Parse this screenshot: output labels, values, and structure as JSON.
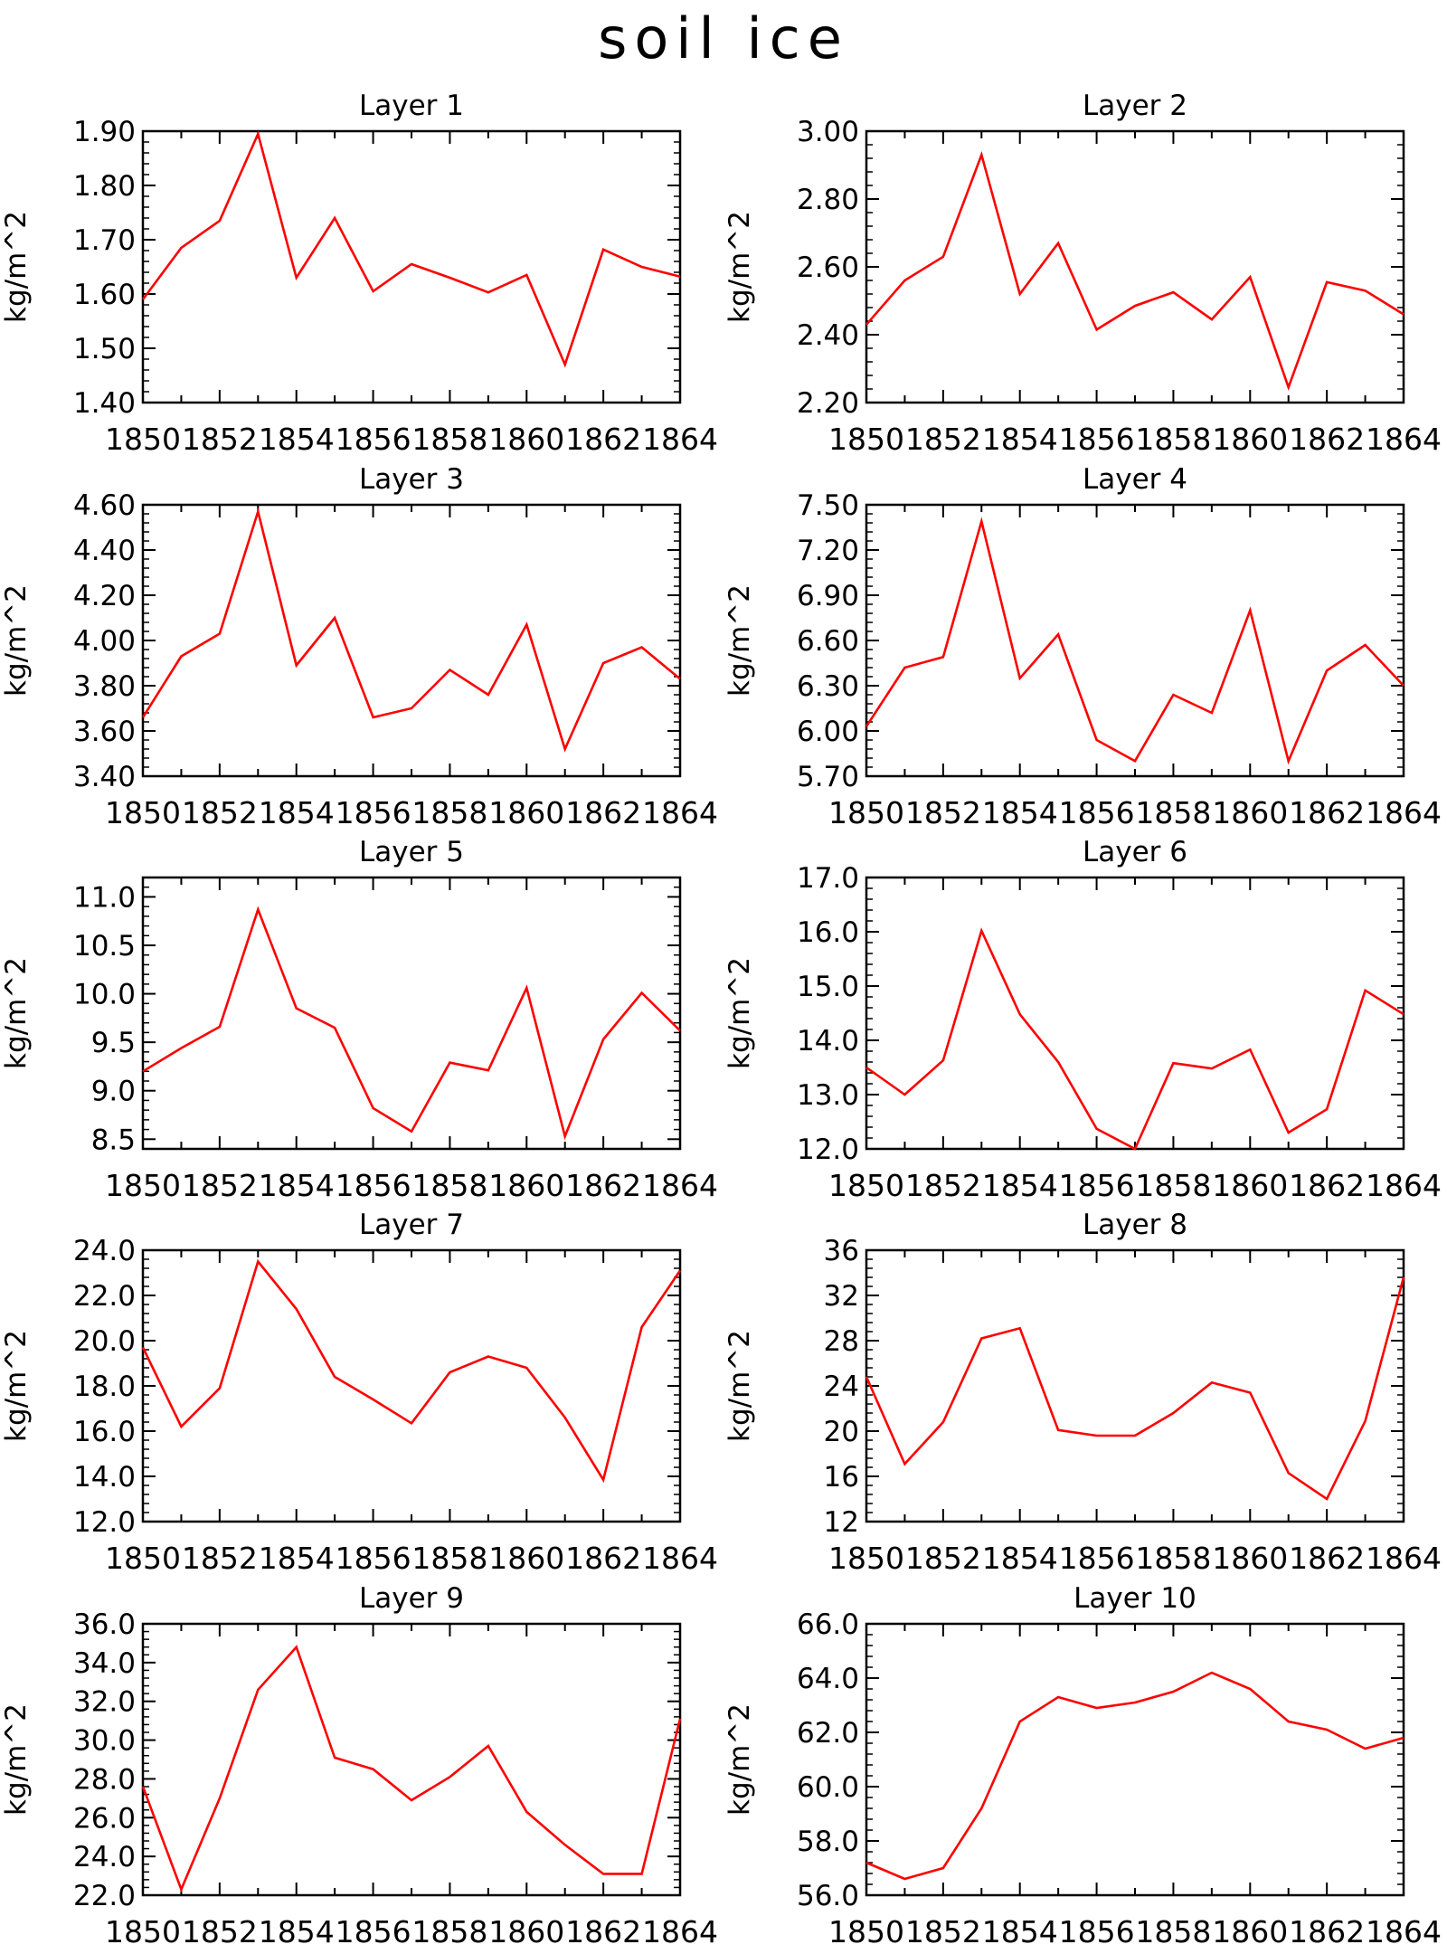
{
  "title": "soil ice",
  "chart_data": [
    {
      "type": "line",
      "title": "Layer 1",
      "ylabel": "kg/m^2",
      "x": [
        1850,
        1851,
        1852,
        1853,
        1854,
        1855,
        1856,
        1857,
        1858,
        1859,
        1860,
        1861,
        1862,
        1863,
        1864
      ],
      "series": [
        {
          "values": [
            1.59,
            1.685,
            1.735,
            1.895,
            1.63,
            1.74,
            1.605,
            1.655,
            1.63,
            1.603,
            1.635,
            1.47,
            1.682,
            1.65,
            1.632
          ]
        }
      ],
      "ylim": [
        1.4,
        1.9
      ],
      "yticks": [
        1.4,
        1.5,
        1.6,
        1.7,
        1.8,
        1.9
      ],
      "ytick_labels": [
        "1.40",
        "1.50",
        "1.60",
        "1.70",
        "1.80",
        "1.90"
      ],
      "xlim": [
        1850,
        1864
      ],
      "xtick_labels": [
        "1850",
        "1852",
        "1854",
        "1856",
        "1858",
        "1860",
        "1862",
        "1864"
      ],
      "color": "#ff0000"
    },
    {
      "type": "line",
      "title": "Layer 2",
      "ylabel": "kg/m^2",
      "x": [
        1850,
        1851,
        1852,
        1853,
        1854,
        1855,
        1856,
        1857,
        1858,
        1859,
        1860,
        1861,
        1862,
        1863,
        1864
      ],
      "series": [
        {
          "values": [
            2.43,
            2.56,
            2.63,
            2.93,
            2.52,
            2.67,
            2.415,
            2.485,
            2.525,
            2.445,
            2.57,
            2.245,
            2.555,
            2.53,
            2.46
          ]
        }
      ],
      "ylim": [
        2.2,
        3.0
      ],
      "yticks": [
        2.2,
        2.4,
        2.6,
        2.8,
        3.0
      ],
      "ytick_labels": [
        "2.20",
        "2.40",
        "2.60",
        "2.80",
        "3.00"
      ],
      "xlim": [
        1850,
        1864
      ],
      "xtick_labels": [
        "1850",
        "1852",
        "1854",
        "1856",
        "1858",
        "1860",
        "1862",
        "1864"
      ],
      "color": "#ff0000"
    },
    {
      "type": "line",
      "title": "Layer 3",
      "ylabel": "kg/m^2",
      "x": [
        1850,
        1851,
        1852,
        1853,
        1854,
        1855,
        1856,
        1857,
        1858,
        1859,
        1860,
        1861,
        1862,
        1863,
        1864
      ],
      "series": [
        {
          "values": [
            3.66,
            3.93,
            4.03,
            4.57,
            3.89,
            4.1,
            3.66,
            3.7,
            3.87,
            3.76,
            4.07,
            3.52,
            3.9,
            3.97,
            3.83
          ]
        }
      ],
      "ylim": [
        3.4,
        4.6
      ],
      "yticks": [
        3.4,
        3.6,
        3.8,
        4.0,
        4.2,
        4.4,
        4.6
      ],
      "ytick_labels": [
        "3.40",
        "3.60",
        "3.80",
        "4.00",
        "4.20",
        "4.40",
        "4.60"
      ],
      "xlim": [
        1850,
        1864
      ],
      "xtick_labels": [
        "1850",
        "1852",
        "1854",
        "1856",
        "1858",
        "1860",
        "1862",
        "1864"
      ],
      "color": "#ff0000"
    },
    {
      "type": "line",
      "title": "Layer 4",
      "ylabel": "kg/m^2",
      "x": [
        1850,
        1851,
        1852,
        1853,
        1854,
        1855,
        1856,
        1857,
        1858,
        1859,
        1860,
        1861,
        1862,
        1863,
        1864
      ],
      "series": [
        {
          "values": [
            6.03,
            6.42,
            6.49,
            7.39,
            6.35,
            6.64,
            5.94,
            5.8,
            6.24,
            6.12,
            6.8,
            5.8,
            6.4,
            6.57,
            6.3
          ]
        }
      ],
      "ylim": [
        5.7,
        7.5
      ],
      "yticks": [
        5.7,
        6.0,
        6.3,
        6.6,
        6.9,
        7.2,
        7.5
      ],
      "ytick_labels": [
        "5.70",
        "6.00",
        "6.30",
        "6.60",
        "6.90",
        "7.20",
        "7.50"
      ],
      "xlim": [
        1850,
        1864
      ],
      "xtick_labels": [
        "1850",
        "1852",
        "1854",
        "1856",
        "1858",
        "1860",
        "1862",
        "1864"
      ],
      "color": "#ff0000"
    },
    {
      "type": "line",
      "title": "Layer 5",
      "ylabel": "kg/m^2",
      "x": [
        1850,
        1851,
        1852,
        1853,
        1854,
        1855,
        1856,
        1857,
        1858,
        1859,
        1860,
        1861,
        1862,
        1863,
        1864
      ],
      "series": [
        {
          "values": [
            9.2,
            9.44,
            9.66,
            10.87,
            9.85,
            9.65,
            8.82,
            8.58,
            9.29,
            9.21,
            10.06,
            8.53,
            9.53,
            10.01,
            9.62
          ]
        }
      ],
      "ylim": [
        8.4,
        11.2
      ],
      "yticks": [
        8.5,
        9.0,
        9.5,
        10.0,
        10.5,
        11.0
      ],
      "ytick_labels": [
        "8.5",
        "9.0",
        "9.5",
        "10.0",
        "10.5",
        "11.0"
      ],
      "xlim": [
        1850,
        1864
      ],
      "xtick_labels": [
        "1850",
        "1852",
        "1854",
        "1856",
        "1858",
        "1860",
        "1862",
        "1864"
      ],
      "color": "#ff0000"
    },
    {
      "type": "line",
      "title": "Layer 6",
      "ylabel": "kg/m^2",
      "x": [
        1850,
        1851,
        1852,
        1853,
        1854,
        1855,
        1856,
        1857,
        1858,
        1859,
        1860,
        1861,
        1862,
        1863,
        1864
      ],
      "series": [
        {
          "values": [
            13.5,
            13.0,
            13.63,
            16.02,
            14.48,
            13.6,
            12.37,
            12.0,
            13.58,
            13.48,
            13.83,
            12.3,
            12.73,
            14.92,
            14.48
          ]
        }
      ],
      "ylim": [
        12.0,
        17.0
      ],
      "yticks": [
        12.0,
        13.0,
        14.0,
        15.0,
        16.0,
        17.0
      ],
      "ytick_labels": [
        "12.0",
        "13.0",
        "14.0",
        "15.0",
        "16.0",
        "17.0"
      ],
      "xlim": [
        1850,
        1864
      ],
      "xtick_labels": [
        "1850",
        "1852",
        "1854",
        "1856",
        "1858",
        "1860",
        "1862",
        "1864"
      ],
      "color": "#ff0000"
    },
    {
      "type": "line",
      "title": "Layer 7",
      "ylabel": "kg/m^2",
      "x": [
        1850,
        1851,
        1852,
        1853,
        1854,
        1855,
        1856,
        1857,
        1858,
        1859,
        1860,
        1861,
        1862,
        1863,
        1864
      ],
      "series": [
        {
          "values": [
            19.7,
            16.2,
            17.9,
            23.5,
            21.4,
            18.4,
            17.4,
            16.35,
            18.6,
            19.3,
            18.8,
            16.6,
            13.85,
            20.6,
            23.1
          ]
        }
      ],
      "ylim": [
        12.0,
        24.0
      ],
      "yticks": [
        12.0,
        14.0,
        16.0,
        18.0,
        20.0,
        22.0,
        24.0
      ],
      "ytick_labels": [
        "12.0",
        "14.0",
        "16.0",
        "18.0",
        "20.0",
        "22.0",
        "24.0"
      ],
      "xlim": [
        1850,
        1864
      ],
      "xtick_labels": [
        "1850",
        "1852",
        "1854",
        "1856",
        "1858",
        "1860",
        "1862",
        "1864"
      ],
      "color": "#ff0000"
    },
    {
      "type": "line",
      "title": "Layer 8",
      "ylabel": "kg/m^2",
      "x": [
        1850,
        1851,
        1852,
        1853,
        1854,
        1855,
        1856,
        1857,
        1858,
        1859,
        1860,
        1861,
        1862,
        1863,
        1864
      ],
      "series": [
        {
          "values": [
            24.8,
            17.1,
            20.8,
            28.2,
            29.1,
            20.1,
            19.6,
            19.6,
            21.6,
            24.3,
            23.4,
            16.3,
            14.0,
            20.9,
            33.6
          ]
        }
      ],
      "ylim": [
        12,
        36
      ],
      "yticks": [
        12,
        16,
        20,
        24,
        28,
        32,
        36
      ],
      "ytick_labels": [
        "12",
        "16",
        "20",
        "24",
        "28",
        "32",
        "36"
      ],
      "xlim": [
        1850,
        1864
      ],
      "xtick_labels": [
        "1850",
        "1852",
        "1854",
        "1856",
        "1858",
        "1860",
        "1862",
        "1864"
      ],
      "color": "#ff0000"
    },
    {
      "type": "line",
      "title": "Layer 9",
      "ylabel": "kg/m^2",
      "x": [
        1850,
        1851,
        1852,
        1853,
        1854,
        1855,
        1856,
        1857,
        1858,
        1859,
        1860,
        1861,
        1862,
        1863,
        1864
      ],
      "series": [
        {
          "values": [
            27.6,
            22.3,
            27.0,
            32.6,
            34.8,
            29.1,
            28.5,
            26.9,
            28.1,
            29.7,
            26.3,
            24.6,
            23.1,
            23.1,
            31.1
          ]
        }
      ],
      "ylim": [
        22.0,
        36.0
      ],
      "yticks": [
        22.0,
        24.0,
        26.0,
        28.0,
        30.0,
        32.0,
        34.0,
        36.0
      ],
      "ytick_labels": [
        "22.0",
        "24.0",
        "26.0",
        "28.0",
        "30.0",
        "32.0",
        "34.0",
        "36.0"
      ],
      "xlim": [
        1850,
        1864
      ],
      "xtick_labels": [
        "1850",
        "1852",
        "1854",
        "1856",
        "1858",
        "1860",
        "1862",
        "1864"
      ],
      "color": "#ff0000"
    },
    {
      "type": "line",
      "title": "Layer 10",
      "ylabel": "kg/m^2",
      "x": [
        1850,
        1851,
        1852,
        1853,
        1854,
        1855,
        1856,
        1857,
        1858,
        1859,
        1860,
        1861,
        1862,
        1863,
        1864
      ],
      "series": [
        {
          "values": [
            57.2,
            56.6,
            57.0,
            59.2,
            62.4,
            63.3,
            62.9,
            63.1,
            63.5,
            64.2,
            63.6,
            62.4,
            62.1,
            61.4,
            61.8
          ]
        }
      ],
      "ylim": [
        56.0,
        66.0
      ],
      "yticks": [
        56.0,
        58.0,
        60.0,
        62.0,
        64.0,
        66.0
      ],
      "ytick_labels": [
        "56.0",
        "58.0",
        "60.0",
        "62.0",
        "64.0",
        "66.0"
      ],
      "xlim": [
        1850,
        1864
      ],
      "xtick_labels": [
        "1850",
        "1852",
        "1854",
        "1856",
        "1858",
        "1860",
        "1862",
        "1864"
      ],
      "color": "#ff0000"
    }
  ]
}
